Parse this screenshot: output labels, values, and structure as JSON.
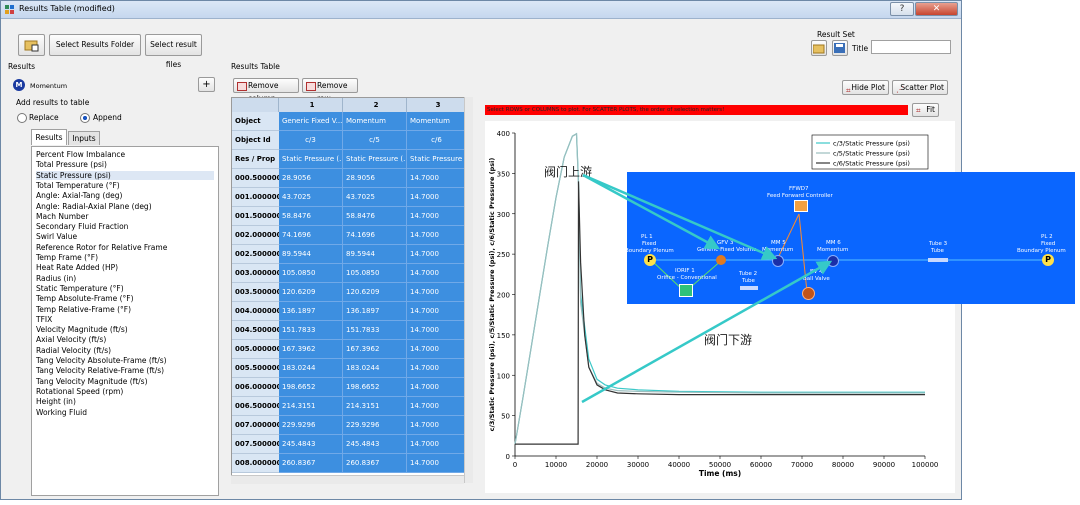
{
  "window": {
    "title": "Results Table (modified)"
  },
  "toolbar": {
    "select_folder": "Select Results Folder",
    "select_files": "Select result files"
  },
  "result_set": {
    "label": "Result Set",
    "title_label": "Title",
    "title_value": ""
  },
  "results_panel": {
    "label": "Results",
    "selected_result": "Momentum",
    "add_label": "Add results to table",
    "replace_label": "Replace",
    "append_label": "Append",
    "tabs": [
      "Results",
      "Inputs"
    ],
    "items": [
      "Percent Flow Imbalance",
      "Total Pressure (psi)",
      "Static Pressure (psi)",
      "Total Temperature (°F)",
      "Angle: Axial-Tang (deg)",
      "Angle: Radial-Axial Plane (deg)",
      "Mach Number",
      "Secondary Fluid Fraction",
      "Swirl Value",
      "Reference Rotor for Relative Frame",
      "Temp Frame (°F)",
      "Heat Rate Added (HP)",
      "Radius (in)",
      "Static Temperature (°F)",
      "Temp Absolute-Frame (°F)",
      "Temp Relative-Frame (°F)",
      "TFIX",
      "Velocity Magnitude (ft/s)",
      "Axial Velocity (ft/s)",
      "Radial Velocity (ft/s)",
      "Tang Velocity Absolute-Frame (ft/s)",
      "Tang Velocity Relative-Frame (ft/s)",
      "Tang Velocity Magnitude (ft/s)",
      "Rotational Speed (rpm)",
      "Height (in)",
      "Working Fluid"
    ]
  },
  "table_panel": {
    "label": "Results Table",
    "remove_column": "Remove column",
    "remove_row": "Remove row",
    "col_numbers": [
      "1",
      "2",
      "3"
    ],
    "object_label": "Object",
    "objects": [
      "Generic Fixed V...",
      "Momentum",
      "Momentum"
    ],
    "object_id_label": "Object Id",
    "object_ids": [
      "c/3",
      "c/5",
      "c/6"
    ],
    "res_prop_label": "Res / Prop",
    "props": [
      "Static Pressure (...",
      "Static Pressure (...",
      "Static Pressure ("
    ],
    "rows": [
      {
        "t": "000.500000",
        "v": [
          "28.9056",
          "28.9056",
          "14.7000"
        ]
      },
      {
        "t": "001.000000",
        "v": [
          "43.7025",
          "43.7025",
          "14.7000"
        ]
      },
      {
        "t": "001.500000",
        "v": [
          "58.8476",
          "58.8476",
          "14.7000"
        ]
      },
      {
        "t": "002.000000",
        "v": [
          "74.1696",
          "74.1696",
          "14.7000"
        ]
      },
      {
        "t": "002.500000",
        "v": [
          "89.5944",
          "89.5944",
          "14.7000"
        ]
      },
      {
        "t": "003.000000",
        "v": [
          "105.0850",
          "105.0850",
          "14.7000"
        ]
      },
      {
        "t": "003.500000",
        "v": [
          "120.6209",
          "120.6209",
          "14.7000"
        ]
      },
      {
        "t": "004.000000",
        "v": [
          "136.1897",
          "136.1897",
          "14.7000"
        ]
      },
      {
        "t": "004.500000",
        "v": [
          "151.7833",
          "151.7833",
          "14.7000"
        ]
      },
      {
        "t": "005.000000",
        "v": [
          "167.3962",
          "167.3962",
          "14.7000"
        ]
      },
      {
        "t": "005.500000",
        "v": [
          "183.0244",
          "183.0244",
          "14.7000"
        ]
      },
      {
        "t": "006.000000",
        "v": [
          "198.6652",
          "198.6652",
          "14.7000"
        ]
      },
      {
        "t": "006.500000",
        "v": [
          "214.3151",
          "214.3151",
          "14.7000"
        ]
      },
      {
        "t": "007.000000",
        "v": [
          "229.9296",
          "229.9296",
          "14.7000"
        ]
      },
      {
        "t": "007.500000",
        "v": [
          "245.4843",
          "245.4843",
          "14.7000"
        ]
      },
      {
        "t": "008.000000",
        "v": [
          "260.8367",
          "260.8367",
          "14.7000"
        ]
      }
    ]
  },
  "plot_panel": {
    "hide_plot": "Hide Plot",
    "scatter_plot": "Scatter Plot",
    "fit": "Fit",
    "hint": "Select ROWS or COLUMNS to plot. For SCATTER PLOTS, the order of selection matters!"
  },
  "chart_data": {
    "type": "line",
    "xlabel": "Time (ms)",
    "ylabel": "c/3/Static Pressure (psi), c/5/Static Pressure (psi), c/6/Static Pressure (psi)",
    "xlim": [
      0,
      100000
    ],
    "ylim": [
      0,
      400
    ],
    "x_ticks": [
      "0",
      "10000",
      "20000",
      "30000",
      "40000",
      "50000",
      "60000",
      "70000",
      "80000",
      "90000",
      "100000"
    ],
    "y_ticks": [
      "0",
      "50",
      "100",
      "150",
      "200",
      "250",
      "300",
      "350",
      "400"
    ],
    "legend_position": "top-right",
    "series": [
      {
        "name": "c/3/Static Pressure (psi)",
        "color": "#3cc8c8",
        "x": [
          0,
          500,
          2000,
          4000,
          6000,
          8000,
          10000,
          12000,
          14000,
          15000,
          15500,
          16000,
          18000,
          20000,
          22000,
          25000,
          30000,
          40000,
          60000,
          100000
        ],
        "y": [
          14.7,
          28.9,
          74.2,
          136.2,
          198.7,
          260.8,
          320,
          370,
          396,
          399,
          340,
          200,
          120,
          95,
          88,
          84,
          82,
          80,
          79,
          79
        ]
      },
      {
        "name": "c/5/Static Pressure (psi)",
        "color": "#9bbdbd",
        "x": [
          0,
          500,
          2000,
          4000,
          6000,
          8000,
          10000,
          12000,
          14000,
          15000,
          15500,
          16000,
          18000,
          20000,
          22000,
          25000,
          30000,
          40000,
          60000,
          100000
        ],
        "y": [
          14.7,
          28.9,
          74.2,
          136.2,
          198.7,
          260.8,
          320,
          370,
          396,
          399,
          335,
          190,
          110,
          90,
          84,
          81,
          80,
          79,
          78,
          78
        ]
      },
      {
        "name": "c/6/Static Pressure (psi)",
        "color": "#333333",
        "x": [
          0,
          15000,
          15400,
          15500,
          16000,
          17000,
          18000,
          20000,
          22000,
          25000,
          30000,
          40000,
          60000,
          100000
        ],
        "y": [
          14.7,
          14.7,
          14.7,
          340,
          240,
          150,
          110,
          88,
          82,
          78,
          77,
          76,
          76,
          76
        ]
      }
    ]
  },
  "overlay": {
    "ffwd_label": "FFWD7",
    "ffwd_name": "Feed Forward Controller",
    "nodes": [
      {
        "id": "PL 1",
        "type": "Fixed",
        "name": "Boundary Plenum"
      },
      {
        "id": "GFV 3",
        "name": "Generic Fixed Volume"
      },
      {
        "id": "MM 5",
        "name": "Momentum"
      },
      {
        "id": "MM 6",
        "name": "Momentum"
      },
      {
        "id": "Tube 3",
        "name": "Tube"
      },
      {
        "id": "PL 2",
        "type": "Fixed",
        "name": "Boundary Plenum"
      },
      {
        "id": "IORIF 1",
        "name": "Orifice - Conventional"
      },
      {
        "id": "Tube 2",
        "name": "Tube"
      },
      {
        "id": "BV 4",
        "name": "Ball Valve"
      }
    ],
    "p_symbol": "P"
  },
  "annotations": {
    "upstream": "阀门上游",
    "downstream": "阀门下游"
  }
}
